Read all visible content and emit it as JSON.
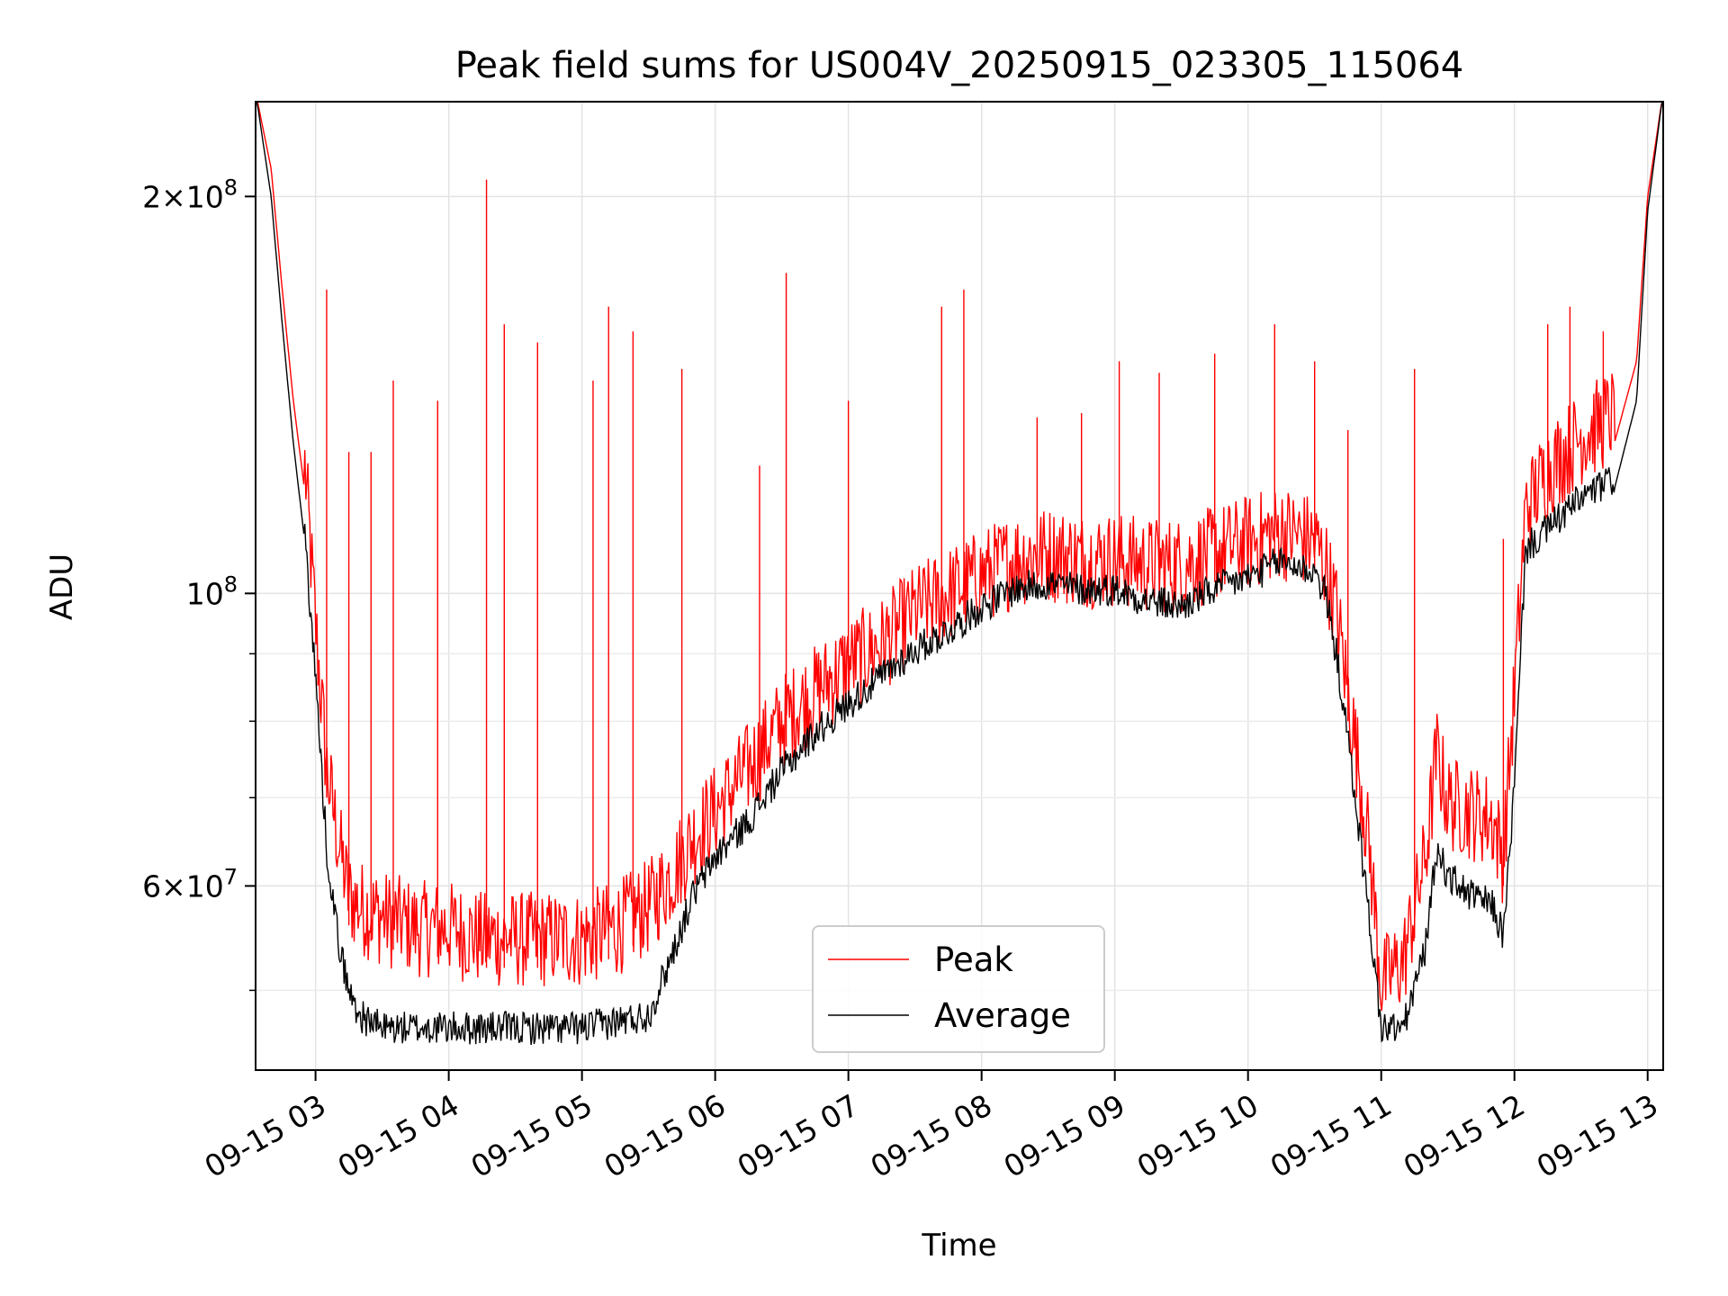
{
  "chart_data": {
    "type": "line",
    "title": "Peak field sums for US004V_20250915_023305_115064",
    "xlabel": "Time",
    "ylabel": "ADU",
    "yscale": "log",
    "ylim": [
      43500000,
      236000000
    ],
    "xlim": [
      "2025-09-15 02:33",
      "2025-09-15 13:07"
    ],
    "grid": true,
    "legend_position": "lower center",
    "x_tick_labels": [
      "09-15 03",
      "09-15 04",
      "09-15 05",
      "09-15 06",
      "09-15 07",
      "09-15 08",
      "09-15 09",
      "09-15 10",
      "09-15 11",
      "09-15 12",
      "09-15 13"
    ],
    "y_tick_labels": [
      {
        "value": 200000000,
        "mantissa": "2",
        "exponent": "8"
      },
      {
        "value": 100000000,
        "mantissa": "",
        "exponent": "8"
      },
      {
        "value": 60000000,
        "mantissa": "6",
        "exponent": "7"
      }
    ],
    "y_minor_ticks": [
      50000000,
      70000000,
      80000000,
      90000000
    ],
    "x": [
      "2025-09-15 02:33",
      "2025-09-15 02:40",
      "2025-09-15 02:45",
      "2025-09-15 02:50",
      "2025-09-15 02:55",
      "2025-09-15 03:00",
      "2025-09-15 03:05",
      "2025-09-15 03:10",
      "2025-09-15 03:15",
      "2025-09-15 03:20",
      "2025-09-15 03:30",
      "2025-09-15 03:45",
      "2025-09-15 04:00",
      "2025-09-15 04:15",
      "2025-09-15 04:30",
      "2025-09-15 04:45",
      "2025-09-15 05:00",
      "2025-09-15 05:15",
      "2025-09-15 05:30",
      "2025-09-15 05:40",
      "2025-09-15 05:50",
      "2025-09-15 06:00",
      "2025-09-15 06:15",
      "2025-09-15 06:30",
      "2025-09-15 06:45",
      "2025-09-15 07:00",
      "2025-09-15 07:15",
      "2025-09-15 07:30",
      "2025-09-15 07:45",
      "2025-09-15 08:00",
      "2025-09-15 08:15",
      "2025-09-15 08:30",
      "2025-09-15 08:45",
      "2025-09-15 09:00",
      "2025-09-15 09:15",
      "2025-09-15 09:30",
      "2025-09-15 09:45",
      "2025-09-15 10:00",
      "2025-09-15 10:15",
      "2025-09-15 10:30",
      "2025-09-15 10:35",
      "2025-09-15 10:40",
      "2025-09-15 10:45",
      "2025-09-15 10:50",
      "2025-09-15 10:55",
      "2025-09-15 11:00",
      "2025-09-15 11:10",
      "2025-09-15 11:20",
      "2025-09-15 11:25",
      "2025-09-15 11:30",
      "2025-09-15 11:40",
      "2025-09-15 11:50",
      "2025-09-15 11:55",
      "2025-09-15 12:00",
      "2025-09-15 12:05",
      "2025-09-15 12:15",
      "2025-09-15 12:30",
      "2025-09-15 12:45",
      "2025-09-15 12:55",
      "2025-09-15 13:00",
      "2025-09-15 13:07"
    ],
    "series": [
      {
        "name": "Peak",
        "color": "#ff0000",
        "values": [
          240000000,
          210000000,
          170000000,
          140000000,
          120000000,
          90000000,
          70000000,
          62000000,
          56000000,
          55000000,
          54000000,
          53000000,
          53000000,
          52000000,
          52000000,
          52000000,
          52000000,
          53000000,
          55000000,
          58000000,
          62000000,
          65000000,
          70000000,
          76000000,
          80000000,
          84000000,
          87000000,
          92000000,
          95000000,
          98000000,
          101000000,
          102000000,
          101000000,
          101000000,
          100000000,
          100000000,
          102000000,
          104000000,
          106000000,
          104000000,
          100000000,
          92000000,
          80000000,
          70000000,
          60000000,
          48000000,
          50000000,
          60000000,
          72000000,
          66000000,
          65000000,
          64000000,
          60000000,
          80000000,
          110000000,
          118000000,
          125000000,
          130000000,
          150000000,
          200000000,
          240000000
        ],
        "spikes": [
          {
            "x": "2025-09-15 03:05",
            "y": 170000000
          },
          {
            "x": "2025-09-15 03:15",
            "y": 128000000
          },
          {
            "x": "2025-09-15 03:25",
            "y": 128000000
          },
          {
            "x": "2025-09-15 03:35",
            "y": 145000000
          },
          {
            "x": "2025-09-15 03:55",
            "y": 140000000
          },
          {
            "x": "2025-09-15 04:17",
            "y": 206000000
          },
          {
            "x": "2025-09-15 04:25",
            "y": 160000000
          },
          {
            "x": "2025-09-15 04:40",
            "y": 155000000
          },
          {
            "x": "2025-09-15 05:05",
            "y": 145000000
          },
          {
            "x": "2025-09-15 05:12",
            "y": 165000000
          },
          {
            "x": "2025-09-15 05:23",
            "y": 158000000
          },
          {
            "x": "2025-09-15 05:45",
            "y": 148000000
          },
          {
            "x": "2025-09-15 06:20",
            "y": 125000000
          },
          {
            "x": "2025-09-15 06:32",
            "y": 175000000
          },
          {
            "x": "2025-09-15 07:00",
            "y": 140000000
          },
          {
            "x": "2025-09-15 07:42",
            "y": 165000000
          },
          {
            "x": "2025-09-15 07:52",
            "y": 170000000
          },
          {
            "x": "2025-09-15 08:25",
            "y": 136000000
          },
          {
            "x": "2025-09-15 08:45",
            "y": 137000000
          },
          {
            "x": "2025-09-15 09:02",
            "y": 150000000
          },
          {
            "x": "2025-09-15 09:20",
            "y": 147000000
          },
          {
            "x": "2025-09-15 09:45",
            "y": 152000000
          },
          {
            "x": "2025-09-15 10:12",
            "y": 160000000
          },
          {
            "x": "2025-09-15 10:30",
            "y": 150000000
          },
          {
            "x": "2025-09-15 10:45",
            "y": 133000000
          },
          {
            "x": "2025-09-15 11:15",
            "y": 148000000
          },
          {
            "x": "2025-09-15 11:55",
            "y": 110000000
          },
          {
            "x": "2025-09-15 12:15",
            "y": 160000000
          },
          {
            "x": "2025-09-15 12:25",
            "y": 165000000
          },
          {
            "x": "2025-09-15 12:40",
            "y": 158000000
          }
        ]
      },
      {
        "name": "Average",
        "color": "#000000",
        "values": [
          240000000,
          200000000,
          160000000,
          130000000,
          110000000,
          85000000,
          63000000,
          54000000,
          49000000,
          47000000,
          46000000,
          46000000,
          46000000,
          46000000,
          46000000,
          46000000,
          46000000,
          46500000,
          47000000,
          52000000,
          58000000,
          62000000,
          66000000,
          72000000,
          77000000,
          81000000,
          85000000,
          89000000,
          92000000,
          96000000,
          99000000,
          100000000,
          99000000,
          99000000,
          97000000,
          96000000,
          99000000,
          101000000,
          104000000,
          102000000,
          98000000,
          88000000,
          76000000,
          65000000,
          55000000,
          46000000,
          46000000,
          53000000,
          63000000,
          60000000,
          58000000,
          57000000,
          54000000,
          70000000,
          106000000,
          110000000,
          116000000,
          120000000,
          140000000,
          195000000,
          240000000
        ]
      }
    ]
  }
}
